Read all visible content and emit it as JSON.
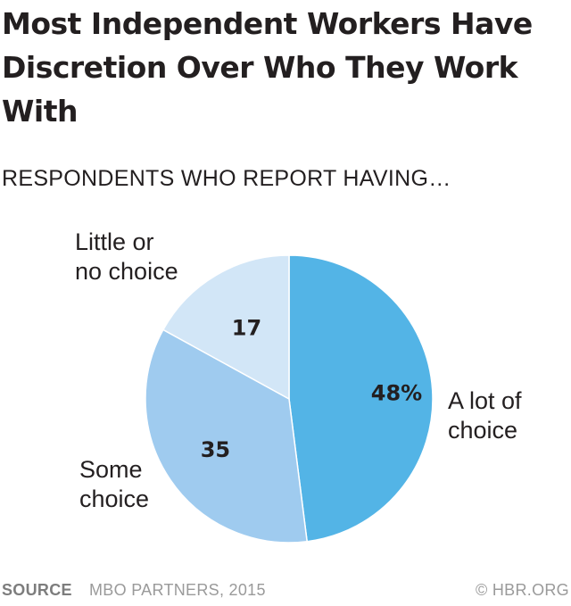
{
  "title": "Most Independent Workers Have Discretion Over Who They Work With",
  "subtitle": "RESPONDENTS WHO REPORT HAVING…",
  "footer": {
    "source_label": "SOURCE",
    "source_text": "MBO PARTNERS, 2015",
    "copyright": "© HBR.ORG"
  },
  "chart_data": {
    "type": "pie",
    "start_angle_deg": 0,
    "direction": "clockwise",
    "slices": [
      {
        "label_lines": [
          "A lot of",
          "choice"
        ],
        "value": 48,
        "value_label": "48%",
        "color": "#53b4e6"
      },
      {
        "label_lines": [
          "Some",
          "choice"
        ],
        "value": 35,
        "value_label": "35",
        "color": "#9fcbef"
      },
      {
        "label_lines": [
          "Little or",
          "no choice"
        ],
        "value": 17,
        "value_label": "17",
        "color": "#d2e6f7"
      }
    ]
  }
}
